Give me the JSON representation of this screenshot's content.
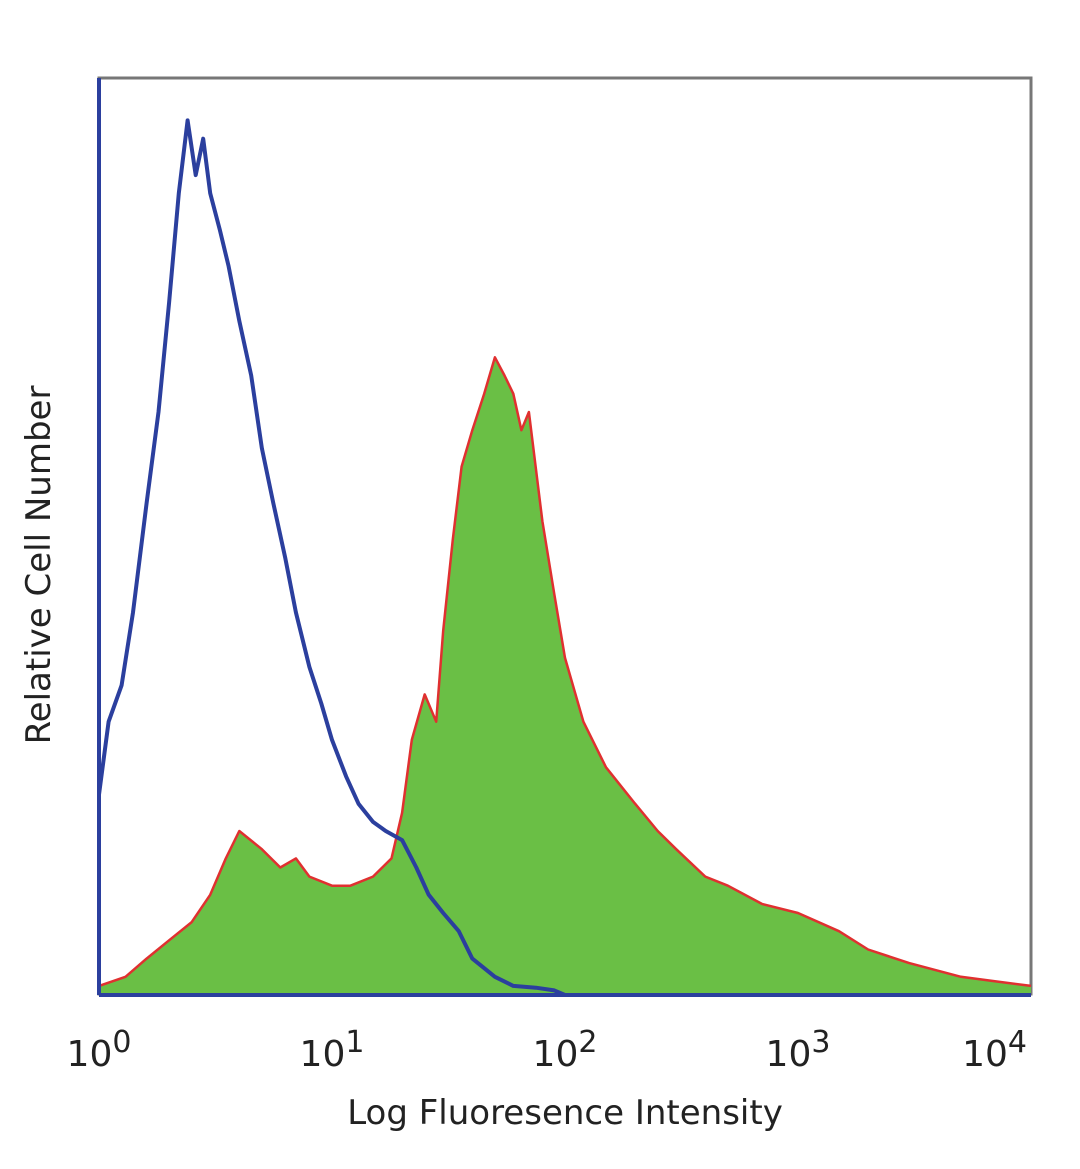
{
  "chart_data": {
    "type": "area",
    "xlabel": "Log Fluoresence Intensity",
    "ylabel": "Relative Cell Number",
    "x_scale": "log",
    "xlim": [
      1,
      10000
    ],
    "ylim": [
      0,
      100
    ],
    "x_ticks": [
      {
        "base": "10",
        "exp": "0"
      },
      {
        "base": "10",
        "exp": "1"
      },
      {
        "base": "10",
        "exp": "2"
      },
      {
        "base": "10",
        "exp": "3"
      },
      {
        "base": "10",
        "exp": "4"
      }
    ],
    "grid": false,
    "legend": "none",
    "series": [
      {
        "style": "outline",
        "color": "#2b3f9e",
        "x": [
          1.0,
          1.1,
          1.25,
          1.4,
          1.6,
          1.8,
          2.0,
          2.2,
          2.4,
          2.6,
          2.8,
          3.0,
          3.3,
          3.6,
          4.0,
          4.5,
          5.0,
          5.6,
          6.3,
          7.0,
          8.0,
          9.0,
          10.0,
          11.5,
          13.0,
          15.0,
          17.0,
          20.0,
          23.0,
          26.0,
          30.0,
          35.0,
          40.0,
          50.0,
          60.0,
          75.0,
          90.0,
          100.0
        ],
        "y": [
          22,
          30,
          34,
          42,
          54,
          64,
          76,
          88,
          96,
          90,
          94,
          88,
          84,
          80,
          74,
          68,
          60,
          54,
          48,
          42,
          36,
          32,
          28,
          24,
          21,
          19,
          18,
          17,
          14,
          11,
          9,
          7,
          4,
          2,
          1,
          0.8,
          0.5,
          0
        ]
      },
      {
        "style": "filled",
        "fill": "#6abf45",
        "color": "#e03030",
        "x": [
          1.0,
          1.3,
          1.6,
          2.0,
          2.5,
          3.0,
          3.5,
          4.0,
          5.0,
          6.0,
          7.0,
          8.0,
          10.0,
          12.0,
          15.0,
          18.0,
          20.0,
          22.0,
          25.0,
          28.0,
          30.0,
          33.0,
          36.0,
          40.0,
          45.0,
          50.0,
          55.0,
          60.0,
          65.0,
          70.0,
          80.0,
          90.0,
          100.0,
          120.0,
          150.0,
          200.0,
          250.0,
          300.0,
          400.0,
          500.0,
          700.0,
          1000.0,
          1500.0,
          2000.0,
          3000.0,
          5000.0,
          7000.0,
          10000.0
        ],
        "y": [
          1,
          2,
          4,
          6,
          8,
          11,
          15,
          18,
          16,
          14,
          15,
          13,
          12,
          12,
          13,
          15,
          20,
          28,
          33,
          30,
          40,
          50,
          58,
          62,
          66,
          70,
          68,
          66,
          62,
          64,
          52,
          44,
          37,
          30,
          25,
          21,
          18,
          16,
          13,
          12,
          10,
          9,
          7,
          5,
          3.5,
          2,
          1.5,
          1
        ]
      }
    ]
  }
}
